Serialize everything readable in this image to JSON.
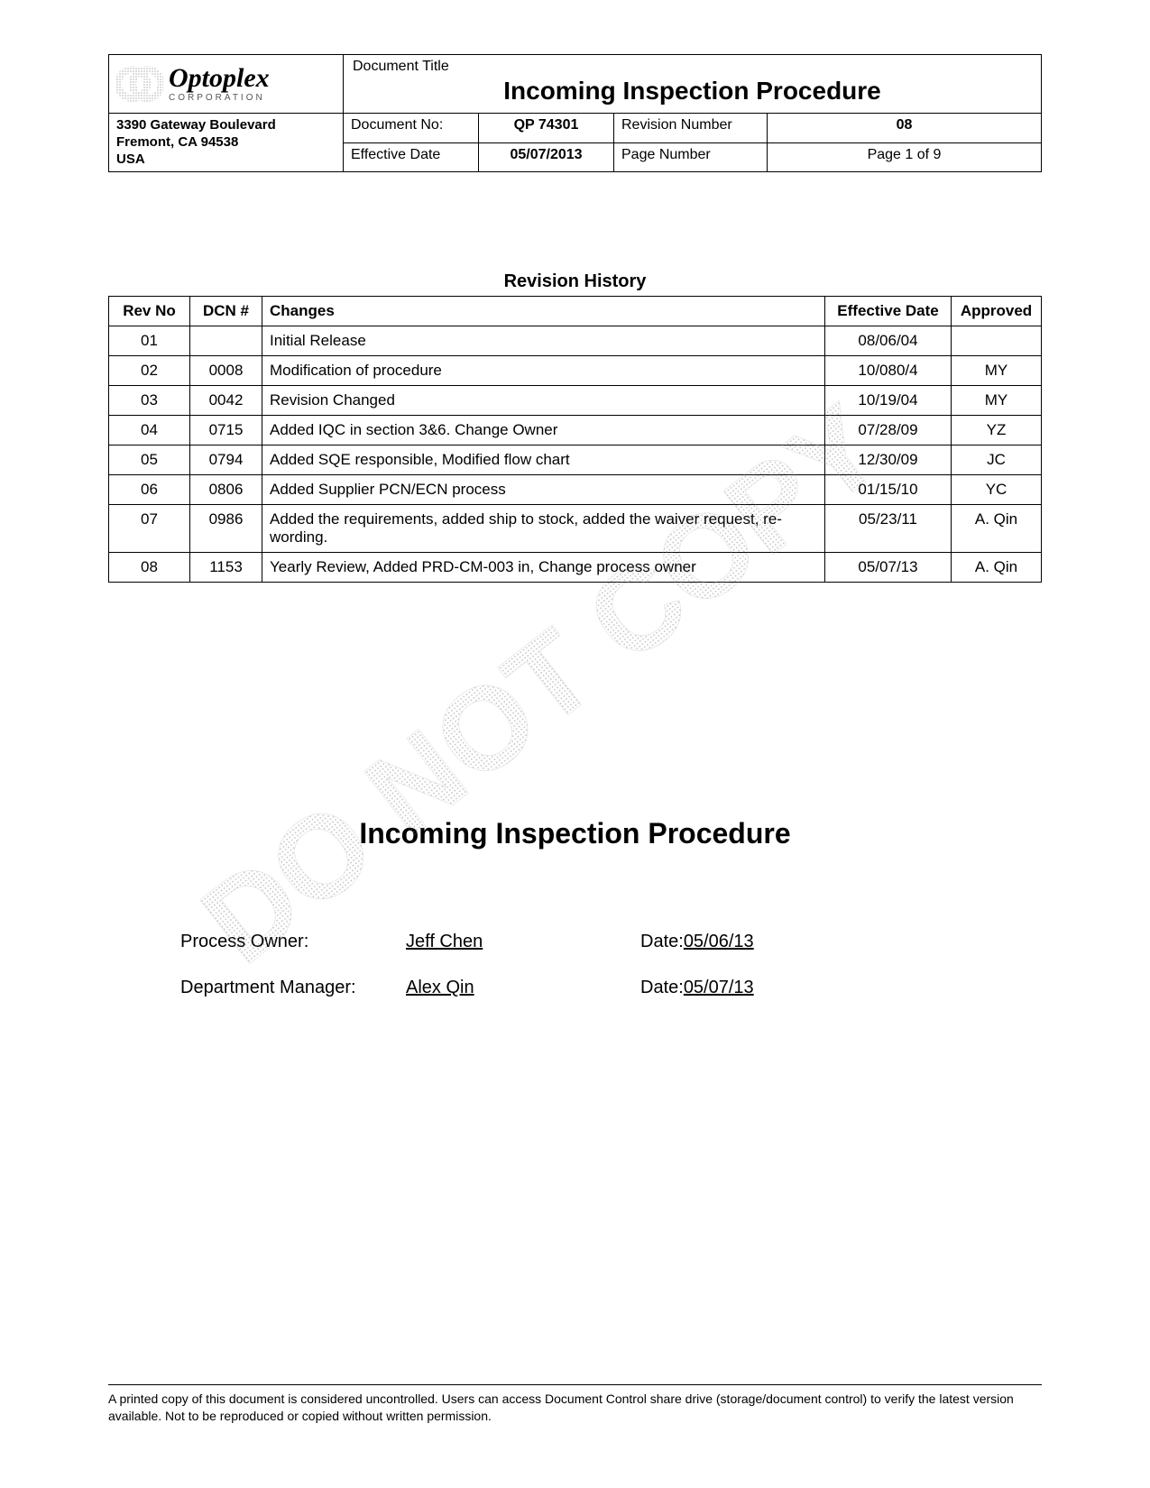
{
  "company": {
    "name": "Optoplex",
    "suffix": "CORPORATION",
    "address_line1": "3390 Gateway Boulevard",
    "address_line2": "Fremont, CA 94538",
    "address_line3": "USA"
  },
  "header": {
    "title_label": "Document Title",
    "title": "Incoming Inspection Procedure",
    "doc_no_label": "Document No:",
    "doc_no": "QP 74301",
    "rev_no_label": "Revision Number",
    "rev_no": "08",
    "eff_date_label": "Effective Date",
    "eff_date": "05/07/2013",
    "page_label": "Page Number",
    "page": "Page 1 of 9"
  },
  "revision_table": {
    "title": "Revision History",
    "columns": [
      "Rev No",
      "DCN #",
      "Changes",
      "Effective Date",
      "Approved"
    ],
    "rows": [
      {
        "rev": "01",
        "dcn": "",
        "changes": "Initial Release",
        "eff": "08/06/04",
        "app": ""
      },
      {
        "rev": "02",
        "dcn": "0008",
        "changes": "Modification of procedure",
        "eff": "10/080/4",
        "app": "MY"
      },
      {
        "rev": "03",
        "dcn": "0042",
        "changes": "Revision Changed",
        "eff": "10/19/04",
        "app": "MY"
      },
      {
        "rev": "04",
        "dcn": "0715",
        "changes": "Added IQC in section 3&6. Change Owner",
        "eff": "07/28/09",
        "app": "YZ"
      },
      {
        "rev": "05",
        "dcn": "0794",
        "changes": "Added SQE responsible, Modified flow chart",
        "eff": "12/30/09",
        "app": "JC"
      },
      {
        "rev": "06",
        "dcn": "0806",
        "changes": "Added Supplier PCN/ECN process",
        "eff": "01/15/10",
        "app": "YC"
      },
      {
        "rev": "07",
        "dcn": "0986",
        "changes": "Added the requirements, added ship to stock, added the waiver request, re-wording.",
        "eff": "05/23/11",
        "app": "A. Qin"
      },
      {
        "rev": "08",
        "dcn": "1153",
        "changes": "Yearly Review, Added PRD-CM-003 in, Change process owner",
        "eff": "05/07/13",
        "app": "A. Qin"
      }
    ]
  },
  "main_title": "Incoming Inspection Procedure",
  "signatures": {
    "owner_label": "Process Owner:",
    "owner_name": "Jeff Chen",
    "owner_date_label": "Date: ",
    "owner_date": "05/06/13",
    "mgr_label": "Department Manager:",
    "mgr_name": "Alex Qin",
    "mgr_date_label": "Date: ",
    "mgr_date": "05/07/13"
  },
  "watermark_text": "DO NOT COPY",
  "footer": "A printed copy of this document is considered uncontrolled. Users can access Document Control share drive (storage/document control)   to verify the latest version available. Not to be reproduced or copied without written permission.",
  "colors": {
    "text": "#000000",
    "border": "#000000",
    "watermark": "#9aa0a6",
    "background": "#ffffff"
  },
  "fonts": {
    "body": "Arial",
    "logo": "Times New Roman Italic",
    "title_size_pt": 21,
    "body_size_pt": 12
  }
}
